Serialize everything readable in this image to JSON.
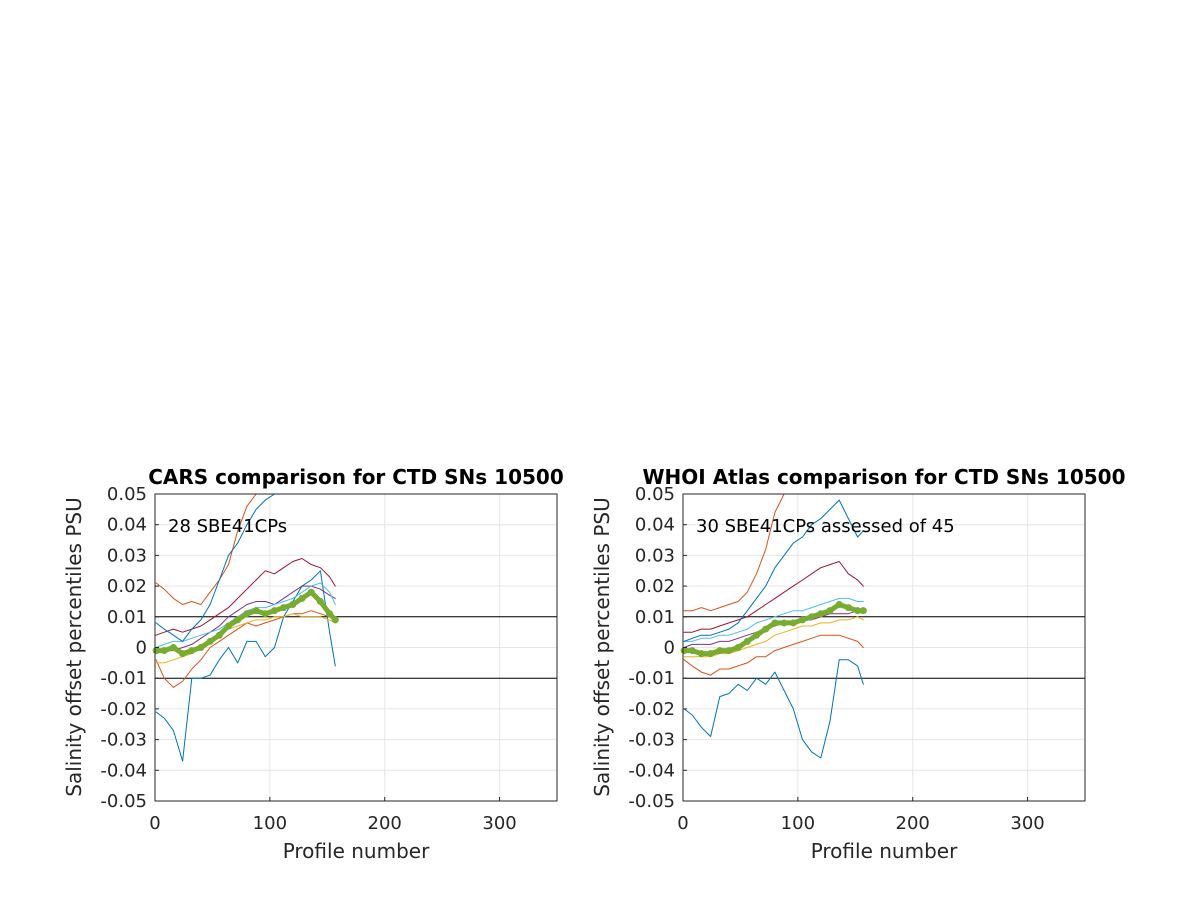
{
  "figure": {
    "background": "#ffffff"
  },
  "chart_data": [
    {
      "type": "line",
      "title": "CARS comparison for CTD SNs 10500",
      "annotation": "28 SBE41CPs",
      "xlabel": "Profile number",
      "ylabel": "Salinity offset percentiles PSU",
      "xlim": [
        0,
        350
      ],
      "ylim": [
        -0.05,
        0.05
      ],
      "xticks": [
        0,
        100,
        200,
        300
      ],
      "yticks": [
        -0.05,
        -0.04,
        -0.03,
        -0.02,
        -0.01,
        0,
        0.01,
        0.02,
        0.03,
        0.04,
        0.05
      ],
      "ytick_labels": [
        "-0.05",
        "-0.04",
        "-0.03",
        "-0.02",
        "-0.01",
        "0",
        "0.01",
        "0.02",
        "0.03",
        "0.04",
        "0.05"
      ],
      "xtick_labels": [
        "0",
        "100",
        "200",
        "300"
      ],
      "grid": true,
      "reference_lines": [
        0.01,
        -0.01
      ],
      "x": [
        1,
        8,
        16,
        24,
        32,
        40,
        48,
        56,
        64,
        72,
        80,
        88,
        96,
        104,
        112,
        120,
        128,
        136,
        144,
        152,
        157
      ],
      "series": [
        {
          "name": "p5",
          "color": "#0072bd",
          "values": [
            -0.021,
            -0.023,
            -0.027,
            -0.037,
            -0.01,
            -0.01,
            -0.009,
            -0.004,
            0.0,
            -0.005,
            0.002,
            0.002,
            -0.003,
            0.0,
            0.01,
            0.015,
            0.02,
            0.022,
            0.025,
            0.005,
            -0.006
          ]
        },
        {
          "name": "p10",
          "color": "#d95319",
          "values": [
            -0.004,
            -0.01,
            -0.013,
            -0.011,
            -0.007,
            -0.004,
            0.0,
            0.002,
            0.004,
            0.006,
            0.008,
            0.007,
            0.008,
            0.009,
            0.01,
            0.011,
            0.011,
            0.012,
            0.011,
            0.01,
            0.009
          ]
        },
        {
          "name": "p25",
          "color": "#edb120",
          "values": [
            -0.005,
            -0.005,
            -0.004,
            -0.003,
            -0.002,
            0.0,
            0.002,
            0.004,
            0.006,
            0.007,
            0.008,
            0.009,
            0.009,
            0.01,
            0.01,
            0.011,
            0.01,
            0.01,
            0.01,
            0.009,
            0.008
          ]
        },
        {
          "name": "p50",
          "color": "#7e2f8e",
          "values": [
            -0.002,
            -0.001,
            -0.001,
            0.0,
            0.001,
            0.003,
            0.005,
            0.007,
            0.01,
            0.012,
            0.014,
            0.015,
            0.015,
            0.014,
            0.016,
            0.018,
            0.02,
            0.02,
            0.019,
            0.017,
            0.016
          ]
        },
        {
          "name": "p75",
          "color": "#4dbeee",
          "values": [
            0.0,
            0.001,
            0.002,
            0.002,
            0.003,
            0.004,
            0.005,
            0.006,
            0.008,
            0.01,
            0.012,
            0.013,
            0.013,
            0.014,
            0.015,
            0.016,
            0.018,
            0.02,
            0.021,
            0.018,
            0.014
          ]
        },
        {
          "name": "p90",
          "color": "#a2142f",
          "values": [
            0.004,
            0.005,
            0.006,
            0.005,
            0.006,
            0.007,
            0.009,
            0.011,
            0.013,
            0.016,
            0.019,
            0.022,
            0.025,
            0.024,
            0.026,
            0.028,
            0.029,
            0.027,
            0.026,
            0.023,
            0.02
          ]
        },
        {
          "name": "p95",
          "color": "#d95319",
          "values": [
            0.021,
            0.019,
            0.016,
            0.014,
            0.015,
            0.014,
            0.018,
            0.022,
            0.027,
            0.038,
            0.046,
            0.05,
            0.05,
            0.05,
            0.05,
            0.05,
            0.05,
            0.05,
            0.05,
            0.05,
            0.05
          ]
        },
        {
          "name": "p99",
          "color": "#0072bd",
          "values": [
            0.008,
            0.006,
            0.004,
            0.002,
            0.006,
            0.009,
            0.014,
            0.022,
            0.03,
            0.034,
            0.04,
            0.045,
            0.048,
            0.05,
            0.05,
            0.05,
            0.05,
            0.05,
            0.05,
            0.05,
            0.05
          ]
        },
        {
          "name": "median",
          "color": "#77ac30",
          "values": [
            -0.001,
            -0.001,
            0.0,
            -0.002,
            -0.001,
            0.0,
            0.002,
            0.004,
            0.007,
            0.009,
            0.011,
            0.012,
            0.011,
            0.012,
            0.013,
            0.014,
            0.016,
            0.018,
            0.015,
            0.011,
            0.009
          ]
        }
      ]
    },
    {
      "type": "line",
      "title": "WHOI Atlas comparison for CTD SNs 10500",
      "annotation": "30 SBE41CPs assessed of 45",
      "xlabel": "Profile number",
      "ylabel": "Salinity offset percentiles PSU",
      "xlim": [
        0,
        350
      ],
      "ylim": [
        -0.05,
        0.05
      ],
      "xticks": [
        0,
        100,
        200,
        300
      ],
      "yticks": [
        -0.05,
        -0.04,
        -0.03,
        -0.02,
        -0.01,
        0,
        0.01,
        0.02,
        0.03,
        0.04,
        0.05
      ],
      "ytick_labels": [
        "-0.05",
        "-0.04",
        "-0.03",
        "-0.02",
        "-0.01",
        "0",
        "0.01",
        "0.02",
        "0.03",
        "0.04",
        "0.05"
      ],
      "xtick_labels": [
        "0",
        "100",
        "200",
        "300"
      ],
      "grid": true,
      "reference_lines": [
        0.01,
        -0.01
      ],
      "x": [
        1,
        8,
        16,
        24,
        32,
        40,
        48,
        56,
        64,
        72,
        80,
        88,
        96,
        104,
        112,
        120,
        128,
        136,
        144,
        152,
        157
      ],
      "series": [
        {
          "name": "p5",
          "color": "#0072bd",
          "values": [
            -0.02,
            -0.022,
            -0.026,
            -0.029,
            -0.016,
            -0.015,
            -0.012,
            -0.014,
            -0.01,
            -0.012,
            -0.008,
            -0.014,
            -0.02,
            -0.03,
            -0.034,
            -0.036,
            -0.024,
            -0.004,
            -0.004,
            -0.006,
            -0.012
          ]
        },
        {
          "name": "p10",
          "color": "#d95319",
          "values": [
            -0.004,
            -0.006,
            -0.008,
            -0.009,
            -0.007,
            -0.007,
            -0.006,
            -0.005,
            -0.003,
            -0.003,
            -0.001,
            0.0,
            0.001,
            0.002,
            0.003,
            0.004,
            0.004,
            0.004,
            0.003,
            0.002,
            0.0
          ]
        },
        {
          "name": "p25",
          "color": "#edb120",
          "values": [
            -0.003,
            -0.003,
            -0.003,
            -0.003,
            -0.002,
            -0.002,
            -0.001,
            0.0,
            0.001,
            0.002,
            0.004,
            0.005,
            0.006,
            0.007,
            0.007,
            0.008,
            0.008,
            0.009,
            0.009,
            0.01,
            0.009
          ]
        },
        {
          "name": "p50",
          "color": "#7e2f8e",
          "values": [
            0.0,
            0.001,
            0.001,
            0.001,
            0.002,
            0.002,
            0.003,
            0.004,
            0.005,
            0.006,
            0.007,
            0.008,
            0.008,
            0.009,
            0.009,
            0.01,
            0.011,
            0.011,
            0.011,
            0.012,
            0.012
          ]
        },
        {
          "name": "p75",
          "color": "#4dbeee",
          "values": [
            0.002,
            0.002,
            0.003,
            0.003,
            0.004,
            0.004,
            0.005,
            0.006,
            0.008,
            0.009,
            0.01,
            0.011,
            0.012,
            0.012,
            0.013,
            0.014,
            0.015,
            0.016,
            0.016,
            0.015,
            0.015
          ]
        },
        {
          "name": "p90",
          "color": "#a2142f",
          "values": [
            0.005,
            0.005,
            0.006,
            0.006,
            0.007,
            0.008,
            0.009,
            0.01,
            0.012,
            0.014,
            0.016,
            0.018,
            0.02,
            0.022,
            0.024,
            0.026,
            0.027,
            0.028,
            0.024,
            0.022,
            0.02
          ]
        },
        {
          "name": "p95",
          "color": "#d95319",
          "values": [
            0.012,
            0.012,
            0.013,
            0.012,
            0.013,
            0.014,
            0.015,
            0.018,
            0.024,
            0.032,
            0.044,
            0.05,
            0.05,
            0.05,
            0.05,
            0.05,
            0.05,
            0.05,
            0.05,
            0.05,
            0.05
          ]
        },
        {
          "name": "p99",
          "color": "#0072bd",
          "values": [
            0.002,
            0.003,
            0.004,
            0.004,
            0.005,
            0.006,
            0.008,
            0.012,
            0.016,
            0.02,
            0.026,
            0.03,
            0.034,
            0.036,
            0.04,
            0.042,
            0.045,
            0.048,
            0.042,
            0.036,
            0.038
          ]
        },
        {
          "name": "median",
          "color": "#77ac30",
          "values": [
            -0.001,
            -0.001,
            -0.002,
            -0.002,
            -0.001,
            -0.001,
            0.0,
            0.002,
            0.004,
            0.006,
            0.008,
            0.008,
            0.008,
            0.009,
            0.01,
            0.011,
            0.012,
            0.014,
            0.013,
            0.012,
            0.012
          ]
        }
      ]
    }
  ]
}
